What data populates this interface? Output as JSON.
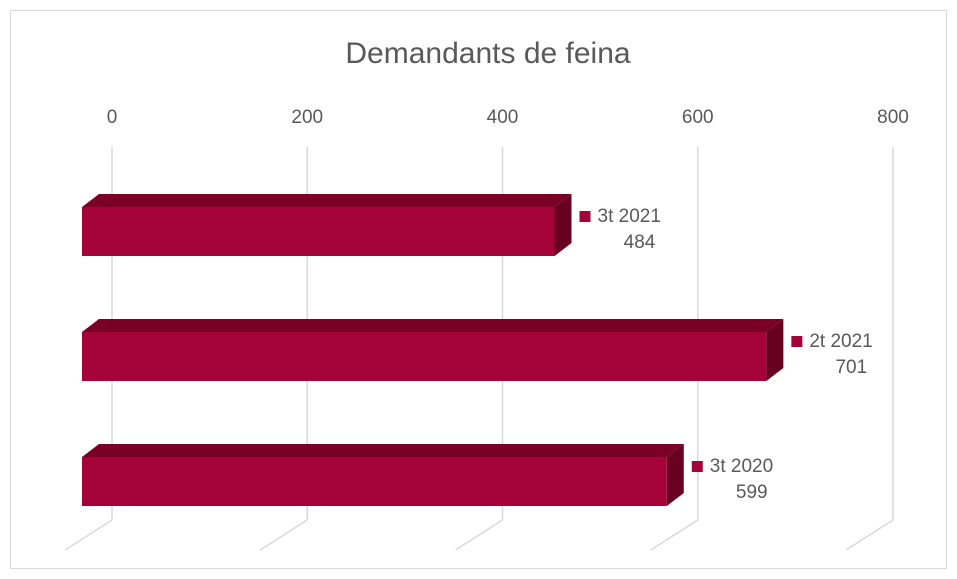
{
  "chart_data": {
    "type": "bar3d_horizontal",
    "title": "Demandants de feina",
    "categories": [
      "3t 2021",
      "2t 2021",
      "3t 2020"
    ],
    "values": [
      484,
      701,
      599
    ],
    "color": "#a30338",
    "xlim": [
      0,
      800
    ],
    "xticks": [
      0,
      200,
      400,
      600,
      800
    ],
    "grid": true
  }
}
